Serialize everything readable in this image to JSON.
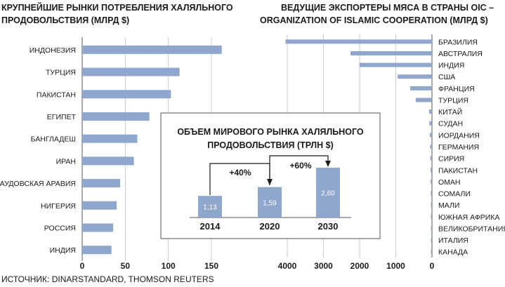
{
  "chart_data": [
    {
      "type": "bar",
      "orientation": "horizontal",
      "title_lines": [
        "КРУПНЕЙШИЕ РЫНКИ ПОТРЕБЛЕНИЯ ХАЛЯЛЬНОГО",
        "ПРОДОВОЛЬСТВИЯ (МЛРД $)"
      ],
      "categories": [
        "ИНДОНЕЗИЯ",
        "ТУРЦИЯ",
        "ПАКИСТАН",
        "ЕГИПЕТ",
        "БАНГЛАДЕШ",
        "ИРАН",
        "САУДОВСКАЯ АРАВИЯ",
        "НИГЕРИЯ",
        "РОССИЯ",
        "ИНДИЯ"
      ],
      "values": [
        162,
        113,
        103,
        78,
        64,
        60,
        44,
        40,
        36,
        34
      ],
      "xlim": [
        0,
        160
      ],
      "xticks": [
        0,
        50,
        100,
        150
      ],
      "grid": true,
      "bar_color": "#8fa6cd"
    },
    {
      "type": "bar",
      "orientation": "horizontal",
      "x_direction": "reversed",
      "title_lines": [
        "ВЕДУЩИЕ ЭКСПОРТЕРЫ МЯСА В СТРАНЫ OIC –",
        "ORGANIZATION OF ISLAMIC COOPERATION (МЛРД $)"
      ],
      "categories": [
        "БРАЗИЛИЯ",
        "АВСТРАЛИЯ",
        "ИНДИЯ",
        "США",
        "ФРАНЦИЯ",
        "ТУРЦИЯ",
        "КИТАЙ",
        "СУДАН",
        "ИОРДАНИЯ",
        "ГЕРМАНИЯ",
        "СИРИЯ",
        "ПАКИСТАН",
        "ОМАН",
        "СОМАЛИ",
        "МАЛИ",
        "ЮЖНАЯ АФРИКА",
        "ВЕЛИКОБРИТАНИЯ",
        "ИТАЛИЯ",
        "КАНАДА"
      ],
      "values": [
        4050,
        2250,
        2000,
        950,
        600,
        450,
        80,
        70,
        60,
        50,
        45,
        40,
        40,
        35,
        30,
        30,
        25,
        20,
        15
      ],
      "xlim": [
        0,
        4000
      ],
      "xticks": [
        4000,
        3000,
        2000,
        1000,
        0
      ],
      "grid": true,
      "bar_color": "#8fa6cd"
    },
    {
      "type": "bar",
      "title_lines": [
        "ОБЪЕМ МИРОВОГО РЫНКА ХАЛЯЛЬНОГО",
        "ПРОДОВОЛЬСТВИЯ (ТРЛН $)"
      ],
      "categories": [
        "2014",
        "2020",
        "2030"
      ],
      "values": [
        1.13,
        1.59,
        2.6
      ],
      "value_labels": [
        "1,13",
        "1,59",
        "2,60"
      ],
      "annotations": [
        "+40%",
        "+60%"
      ],
      "bar_color": "#8fa6cd"
    }
  ],
  "source": "ИСТОЧНИК: DINARSTANDARD, THOMSON REUTERS"
}
